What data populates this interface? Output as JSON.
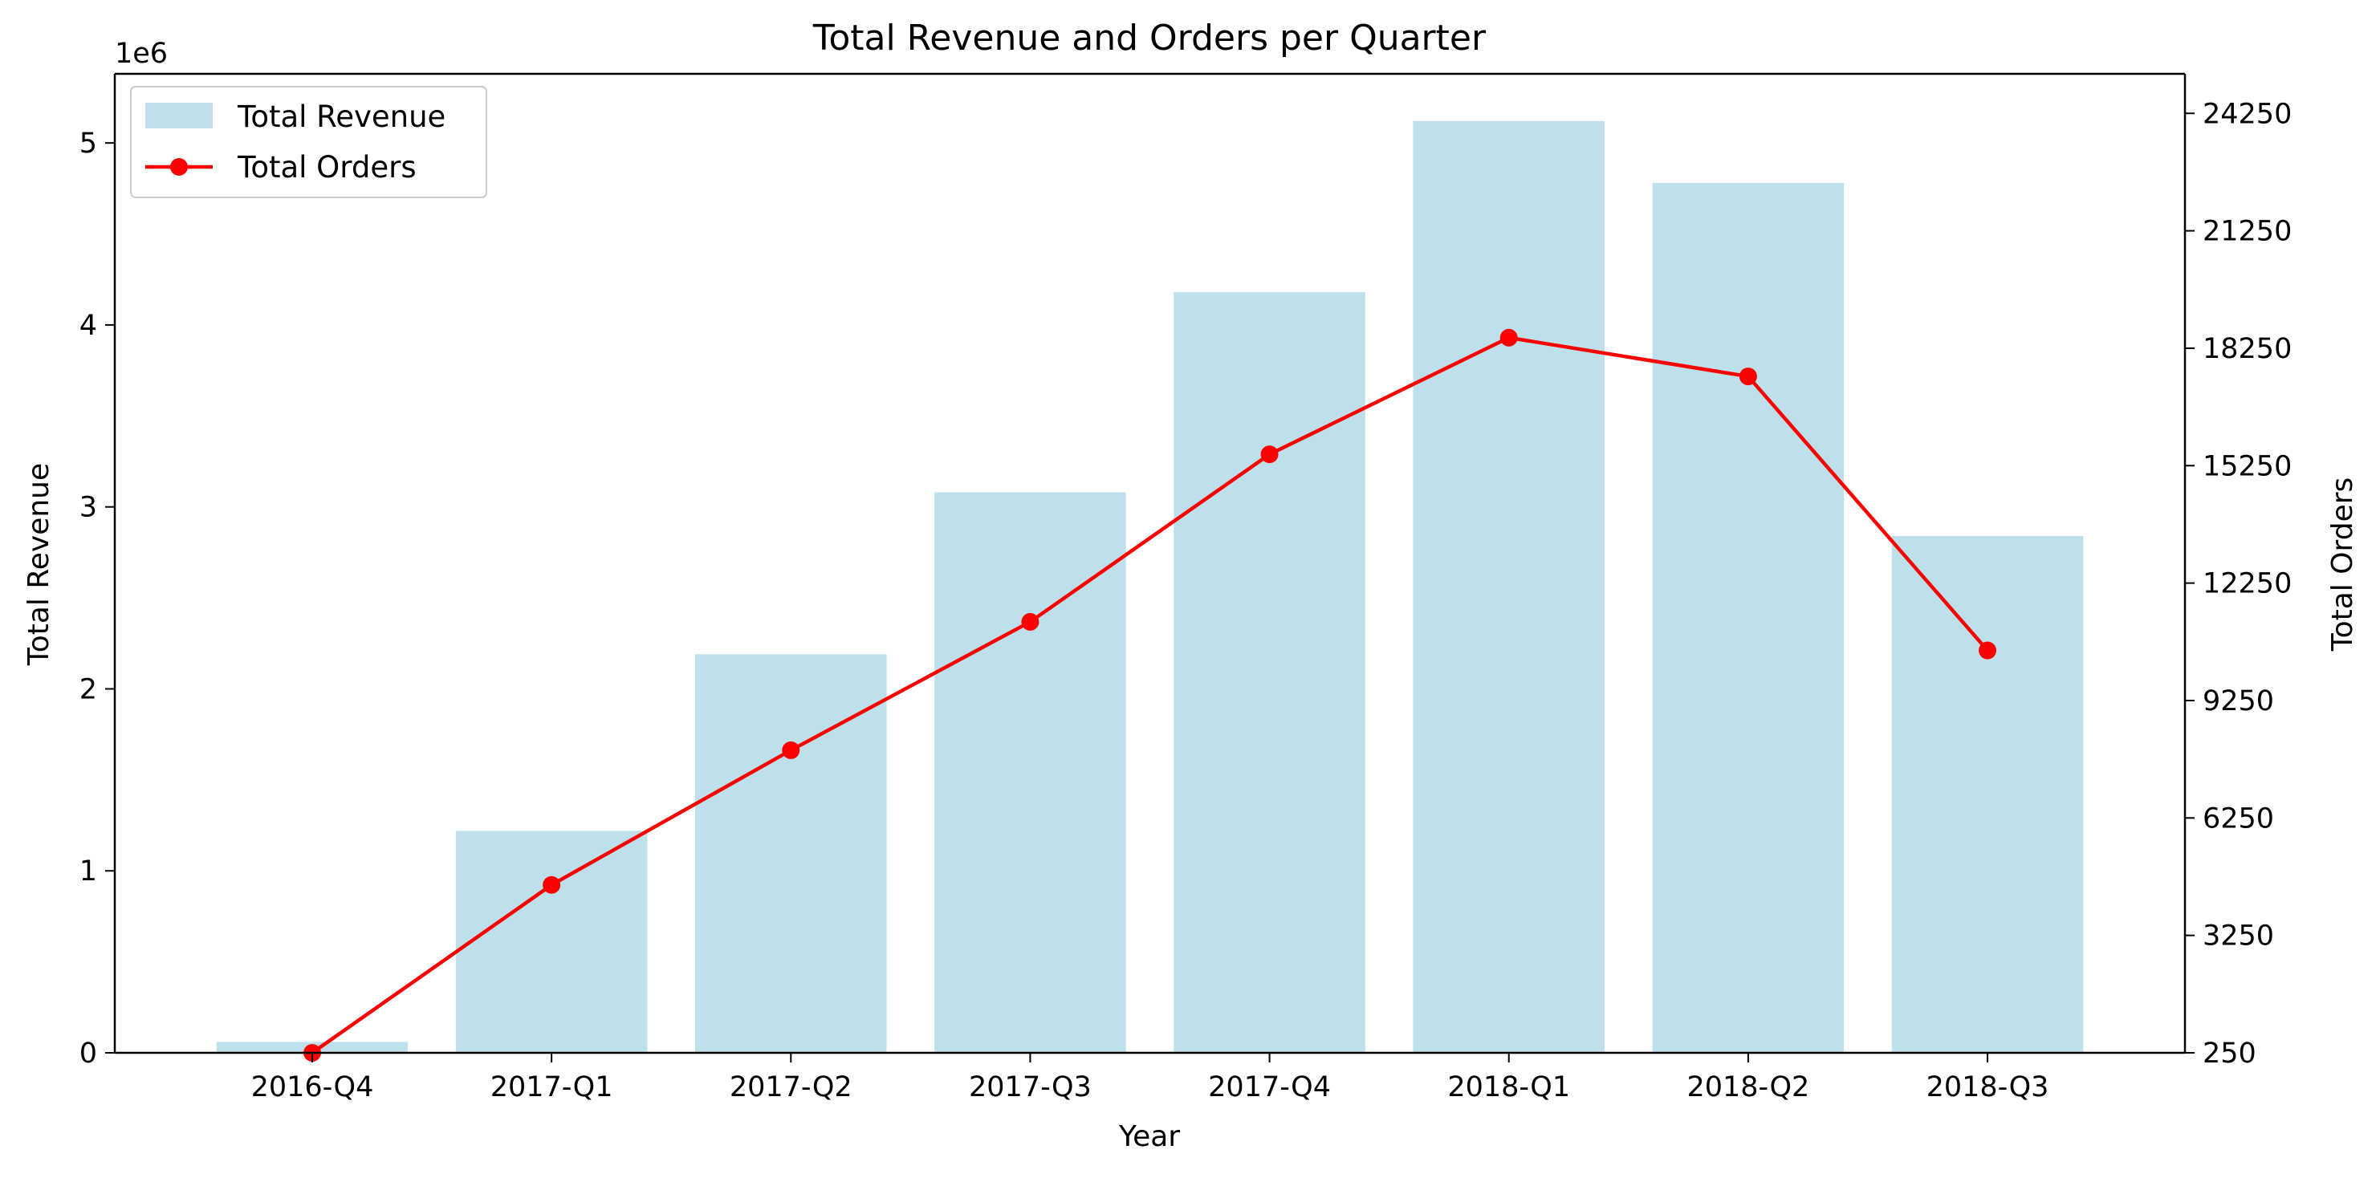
{
  "chart_data": {
    "type": "bar",
    "title": "Total Revenue and Orders per Quarter",
    "xlabel": "Year",
    "ylabel": "Total Revenue",
    "y2label": "Total Orders",
    "y_offset_label": "1e6",
    "categories": [
      "2016-Q4",
      "2017-Q1",
      "2017-Q2",
      "2017-Q3",
      "2017-Q4",
      "2018-Q1",
      "2018-Q2",
      "2018-Q3"
    ],
    "series": [
      {
        "name": "Total Revenue",
        "type": "bar",
        "axis": "left",
        "color": "#add8e6",
        "values": [
          60000,
          1220000,
          2190000,
          3080000,
          4180000,
          5120000,
          4780000,
          2840000
        ]
      },
      {
        "name": "Total Orders",
        "type": "line",
        "axis": "right",
        "color": "#ff0000",
        "marker": "circle",
        "values": [
          250,
          4540,
          7980,
          11260,
          15540,
          18520,
          17530,
          10530
        ]
      }
    ],
    "ylim": [
      0,
      5380000
    ],
    "y2lim": [
      250,
      25260
    ],
    "yticks": [
      0,
      1000000,
      2000000,
      3000000,
      4000000,
      5000000
    ],
    "ytick_labels": [
      "0",
      "1",
      "2",
      "3",
      "4",
      "5"
    ],
    "y2ticks": [
      250,
      3250,
      6250,
      9250,
      12250,
      15250,
      18250,
      21250,
      24250
    ],
    "y2tick_labels": [
      "250",
      "3250",
      "6250",
      "9250",
      "12250",
      "15250",
      "18250",
      "21250",
      "24250"
    ],
    "legend_placement": "top-left",
    "grid": false
  }
}
